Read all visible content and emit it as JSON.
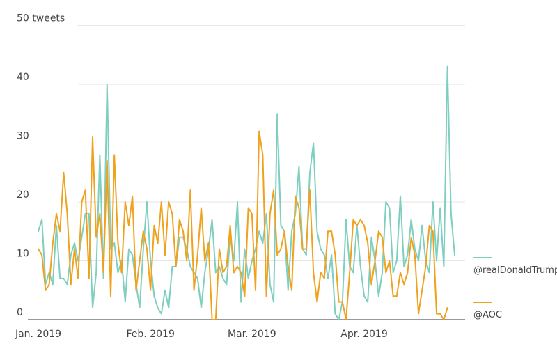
{
  "chart_data": {
    "type": "line",
    "title": "",
    "xlabel": "",
    "ylabel": "",
    "y_unit_label": "tweets",
    "ylim": [
      0,
      50
    ],
    "y_ticks": [
      0,
      10,
      20,
      30,
      40,
      50
    ],
    "y_tick_labels": [
      "0",
      "10",
      "20",
      "30",
      "40",
      "50 tweets"
    ],
    "x_start": "2019-01-01",
    "x_ticks": [
      {
        "date": "2019-01-01",
        "label": "Jan. 2019"
      },
      {
        "date": "2019-02-01",
        "label": "Feb. 2019"
      },
      {
        "date": "2019-03-01",
        "label": "Mar. 2019"
      },
      {
        "date": "2019-04-01",
        "label": "Apr. 2019"
      }
    ],
    "grid": "horizontal",
    "legend_position": "right",
    "series": [
      {
        "name": "@realDonaldTrump",
        "color": "#7ecfc0",
        "values": [
          15,
          17,
          6,
          8,
          6,
          16,
          7,
          7,
          6,
          11,
          13,
          10,
          14,
          18,
          18,
          2,
          8,
          28,
          7,
          40,
          12,
          13,
          8,
          10,
          3,
          12,
          11,
          6,
          2,
          12,
          20,
          10,
          4,
          2,
          1,
          5,
          2,
          9,
          9,
          14,
          14,
          12,
          9,
          8,
          7,
          2,
          8,
          12,
          17,
          8,
          9,
          7,
          6,
          14,
          10,
          20,
          3,
          12,
          7,
          10,
          12,
          15,
          13,
          18,
          6,
          3,
          35,
          16,
          15,
          5,
          15,
          18,
          26,
          12,
          11,
          25,
          30,
          15,
          12,
          11,
          7,
          11,
          1,
          0,
          3,
          17,
          9,
          8,
          16,
          9,
          4,
          3,
          14,
          10,
          4,
          8,
          20,
          19,
          8,
          10,
          21,
          9,
          11,
          17,
          12,
          10,
          16,
          10,
          8,
          20,
          10,
          19,
          9,
          43,
          18,
          11
        ]
      },
      {
        "name": "@AOC",
        "color": "#f0a21e",
        "values": [
          12,
          11,
          5,
          6,
          13,
          18,
          15,
          25,
          18,
          6,
          12,
          7,
          20,
          22,
          7,
          31,
          14,
          18,
          8,
          27,
          4,
          28,
          13,
          8,
          20,
          16,
          21,
          5,
          10,
          15,
          12,
          5,
          16,
          13,
          20,
          11,
          20,
          18,
          9,
          17,
          15,
          10,
          22,
          5,
          11,
          19,
          10,
          13,
          0,
          0,
          12,
          8,
          9,
          16,
          8,
          9,
          8,
          4,
          19,
          18,
          5,
          32,
          28,
          4,
          18,
          22,
          11,
          12,
          15,
          9,
          5,
          21,
          19,
          12,
          12,
          22,
          8,
          3,
          8,
          7,
          15,
          15,
          11,
          3,
          3,
          0,
          8,
          17,
          16,
          17,
          16,
          13,
          6,
          10,
          15,
          14,
          8,
          10,
          4,
          4,
          8,
          6,
          8,
          14,
          11,
          1,
          5,
          9,
          16,
          15,
          1,
          1,
          0,
          2
        ]
      }
    ]
  }
}
